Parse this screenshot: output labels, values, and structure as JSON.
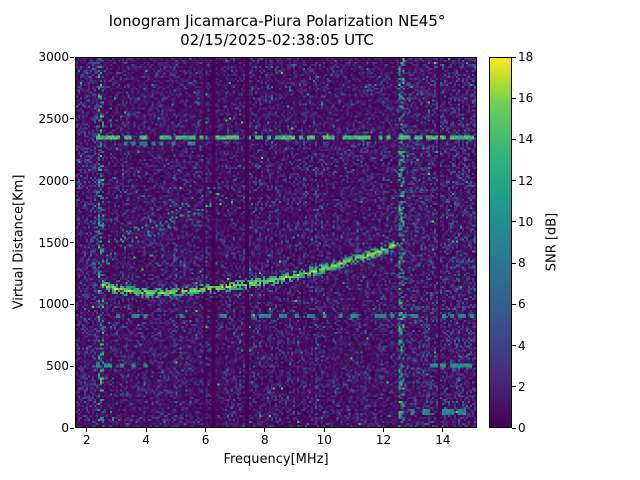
{
  "chart_data": {
    "type": "heatmap",
    "title": "Ionogram Jicamarca-Piura Polarization NE45°",
    "subtitle": "02/15/2025-02:38:05 UTC",
    "xlabel": "Frequency[MHz]",
    "ylabel": "Virtual Distance[Km]",
    "xlim": [
      1.6,
      15.15
    ],
    "ylim": [
      0,
      3000
    ],
    "xticks": [
      2,
      4,
      6,
      8,
      10,
      12,
      14
    ],
    "yticks": [
      0,
      500,
      1000,
      1500,
      2000,
      2500,
      3000
    ],
    "grid": false,
    "colorbar": {
      "label": "SNR [dB]",
      "min": 0,
      "max": 18,
      "ticks": [
        0,
        2,
        4,
        6,
        8,
        10,
        12,
        14,
        16,
        18
      ],
      "position": "right"
    },
    "colormap": {
      "name": "viridis",
      "stops": [
        [
          0,
          "#440154"
        ],
        [
          0.125,
          "#482878"
        ],
        [
          0.25,
          "#3e4a89"
        ],
        [
          0.375,
          "#31688e"
        ],
        [
          0.5,
          "#26828e"
        ],
        [
          0.625,
          "#1f9e89"
        ],
        [
          0.75,
          "#35b779"
        ],
        [
          0.875,
          "#6ece58"
        ],
        [
          0.9375,
          "#b5de2b"
        ],
        [
          1,
          "#fde725"
        ]
      ]
    },
    "noise": {
      "exp_mean_db": 1.3,
      "spike_prob": 0.004,
      "spike_min_db": 8,
      "spike_max_db": 16
    },
    "features": {
      "traces": [
        {
          "name": "f-region-echo",
          "points": [
            [
              2.45,
              1160
            ],
            [
              2.8,
              1130
            ],
            [
              3.2,
              1110
            ],
            [
              3.8,
              1095
            ],
            [
              4.5,
              1090
            ],
            [
              5.2,
              1100
            ],
            [
              6.0,
              1120
            ],
            [
              6.8,
              1140
            ],
            [
              7.6,
              1165
            ],
            [
              8.4,
              1195
            ],
            [
              9.2,
              1240
            ],
            [
              10.0,
              1290
            ],
            [
              10.8,
              1345
            ],
            [
              11.6,
              1405
            ],
            [
              12.2,
              1455
            ],
            [
              12.55,
              1505
            ]
          ],
          "snr": 18,
          "halfwidth_km": 40,
          "density": 0.92
        },
        {
          "name": "echo-halo",
          "points": [
            [
              2.45,
              1160
            ],
            [
              2.8,
              1130
            ],
            [
              3.2,
              1110
            ],
            [
              3.8,
              1095
            ],
            [
              4.5,
              1090
            ],
            [
              5.2,
              1100
            ],
            [
              6.0,
              1120
            ],
            [
              6.8,
              1140
            ],
            [
              7.6,
              1165
            ],
            [
              8.4,
              1195
            ],
            [
              9.2,
              1240
            ],
            [
              10.0,
              1290
            ],
            [
              10.8,
              1345
            ],
            [
              11.6,
              1405
            ],
            [
              12.2,
              1455
            ],
            [
              12.55,
              1505
            ]
          ],
          "snr": 9,
          "halfwidth_km": 90,
          "density": 0.1
        },
        {
          "name": "spread-echo",
          "points": [
            [
              2.6,
              1430
            ],
            [
              3.2,
              1520
            ],
            [
              4.0,
              1620
            ],
            [
              4.8,
              1700
            ],
            [
              5.6,
              1780
            ],
            [
              6.4,
              1860
            ]
          ],
          "snr": 14,
          "halfwidth_km": 110,
          "density": 0.13
        },
        {
          "name": "second-hop",
          "points": [
            [
              9.3,
              2040
            ],
            [
              10.2,
              2150
            ],
            [
              11.0,
              2250
            ],
            [
              11.5,
              2310
            ]
          ],
          "snr": 9,
          "halfwidth_km": 60,
          "density": 0.15
        }
      ],
      "interference_hlines": [
        {
          "km": 2350,
          "from": 2.3,
          "to": 15.15,
          "snr": 16,
          "density": 0.7
        },
        {
          "km": 2310,
          "from": 2.3,
          "to": 6.0,
          "snr": 10,
          "density": 0.25
        },
        {
          "km": 900,
          "from": 2.3,
          "to": 15.15,
          "snr": 11,
          "density": 0.3
        },
        {
          "km": 500,
          "from": 2.3,
          "to": 4.5,
          "snr": 12,
          "density": 0.45
        },
        {
          "km": 500,
          "from": 12.6,
          "to": 15.0,
          "snr": 12,
          "density": 0.5
        },
        {
          "km": 120,
          "from": 12.6,
          "to": 15.0,
          "snr": 11,
          "density": 0.4
        },
        {
          "km": 60,
          "from": 2.3,
          "to": 2.9,
          "snr": 12,
          "density": 0.6
        }
      ],
      "rfi_vertical_stripes": [
        {
          "mhz": 2.45,
          "width": 0.18,
          "snr": 15,
          "density": 0.3,
          "dark": false
        },
        {
          "mhz": 2.25,
          "width": 0.1,
          "snr": 8,
          "density": 0.25,
          "dark": false
        },
        {
          "mhz": 3.35,
          "width": 0.08,
          "snr": 7,
          "density": 0.15,
          "dark": false
        },
        {
          "mhz": 4.95,
          "width": 0.12,
          "snr": 8,
          "density": 0.18,
          "dark": false
        },
        {
          "mhz": 5.95,
          "width": 0.12,
          "snr": 0,
          "density": 0,
          "dark": true
        },
        {
          "mhz": 6.25,
          "width": 0.1,
          "snr": 0,
          "density": 0,
          "dark": true
        },
        {
          "mhz": 7.4,
          "width": 0.15,
          "snr": 0,
          "density": 0,
          "dark": true
        },
        {
          "mhz": 9.7,
          "width": 0.08,
          "snr": 7,
          "density": 0.15,
          "dark": false
        },
        {
          "mhz": 12.62,
          "width": 0.16,
          "snr": 15,
          "density": 0.35,
          "dark": false
        },
        {
          "mhz": 13.9,
          "width": 0.08,
          "snr": 0,
          "density": 0,
          "dark": true
        },
        {
          "mhz": 14.55,
          "width": 0.07,
          "snr": 7,
          "density": 0.12,
          "dark": false
        }
      ],
      "noisy_regions": [
        {
          "from": 12.55,
          "to": 15.15,
          "snr": 7,
          "density": 0.2
        },
        {
          "from": 1.6,
          "to": 2.35,
          "snr": 6,
          "density": 0.15
        }
      ]
    }
  }
}
